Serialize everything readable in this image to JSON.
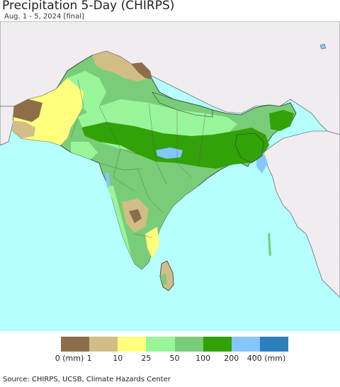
{
  "title": "Precipitation 5-Day (CHIRPS)",
  "subtitle": "Aug. 1 - 5, 2024 [final]",
  "colors": {
    "ocean": "#b5ffff",
    "land_outside": "#f0ecf0",
    "border": "#333333"
  },
  "legend": {
    "swatches": [
      "#8c6f4a",
      "#d2bd86",
      "#fffe7d",
      "#99f59a",
      "#79cd78",
      "#31a208",
      "#84c7fd",
      "#2d7fbc"
    ],
    "ticks": [
      "0 (mm)",
      "1",
      "10",
      "25",
      "50",
      "100",
      "200",
      "400 (mm)"
    ]
  },
  "source": "Source: CHIRPS, UCSB, Climate Hazards Center"
}
